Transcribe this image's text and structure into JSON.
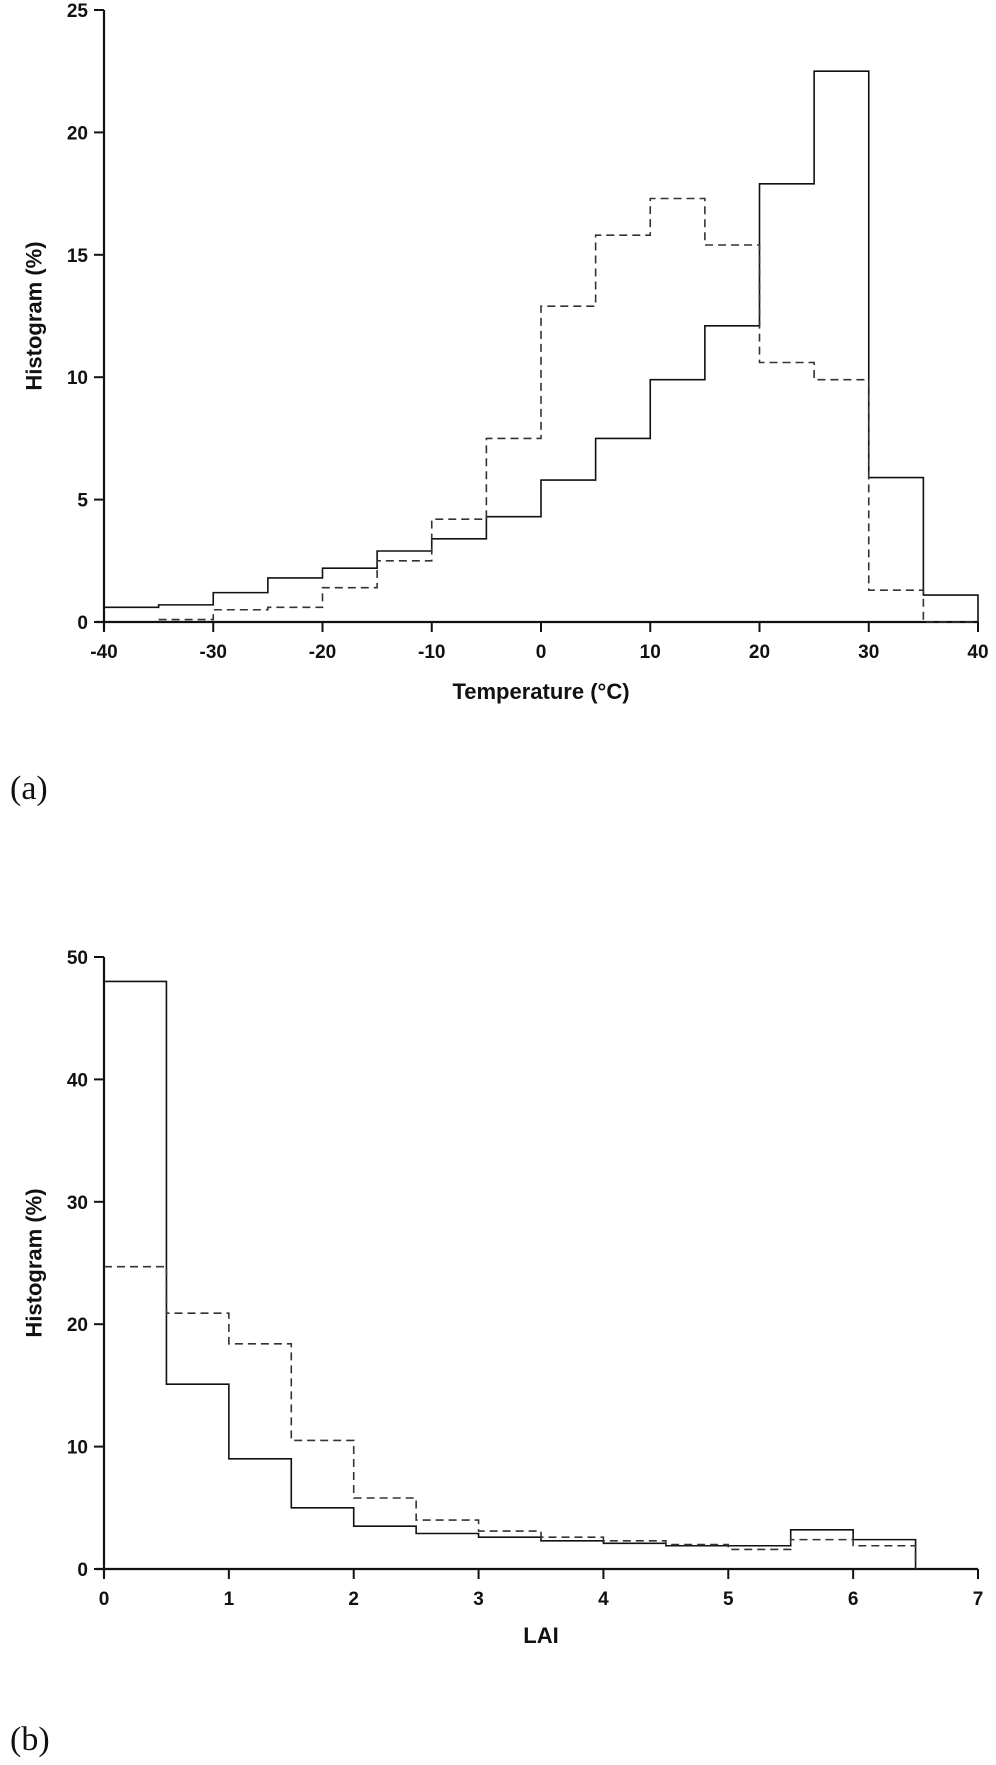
{
  "chart_data": [
    {
      "type": "histogram",
      "panel_label": "(a)",
      "xlabel": "Temperature (°C)",
      "ylabel": "Histogram (%)",
      "xlim": [
        -40,
        40
      ],
      "ylim": [
        0,
        25
      ],
      "xticks": [
        -40,
        -30,
        -20,
        -10,
        0,
        10,
        20,
        30,
        40
      ],
      "yticks": [
        0,
        5,
        10,
        15,
        20,
        25
      ],
      "bin_edges": [
        -40,
        -35,
        -30,
        -25,
        -20,
        -15,
        -10,
        -5,
        0,
        5,
        10,
        15,
        20,
        25,
        30,
        35,
        40
      ],
      "series": [
        {
          "style": "solid",
          "values": [
            0.6,
            0.7,
            1.2,
            1.8,
            2.2,
            2.9,
            3.4,
            4.3,
            5.8,
            7.5,
            9.9,
            12.1,
            17.9,
            22.5,
            5.9,
            1.1
          ]
        },
        {
          "style": "dashed",
          "values": [
            null,
            0.1,
            0.5,
            0.6,
            1.4,
            2.5,
            4.2,
            7.5,
            12.9,
            15.8,
            17.3,
            15.4,
            10.6,
            9.9,
            1.3,
            0
          ]
        }
      ]
    },
    {
      "type": "histogram",
      "panel_label": "(b)",
      "xlabel": "LAI",
      "ylabel": "Histogram (%)",
      "xlim": [
        0,
        7
      ],
      "ylim": [
        0,
        50
      ],
      "xticks": [
        0,
        1,
        2,
        3,
        4,
        5,
        6,
        7
      ],
      "yticks": [
        0,
        10,
        20,
        30,
        40,
        50
      ],
      "bin_edges": [
        0,
        0.5,
        1,
        1.5,
        2,
        2.5,
        3,
        3.5,
        4,
        4.5,
        5,
        5.5,
        6,
        6.5
      ],
      "series": [
        {
          "style": "solid",
          "values": [
            48,
            15.1,
            9.0,
            5.0,
            3.5,
            2.9,
            2.6,
            2.3,
            2.1,
            1.9,
            1.9,
            3.2,
            2.4
          ]
        },
        {
          "style": "dashed",
          "values": [
            24.7,
            20.9,
            18.4,
            10.5,
            5.8,
            4.0,
            3.1,
            2.6,
            2.3,
            2.0,
            1.6,
            2.4,
            1.9
          ]
        }
      ]
    }
  ]
}
